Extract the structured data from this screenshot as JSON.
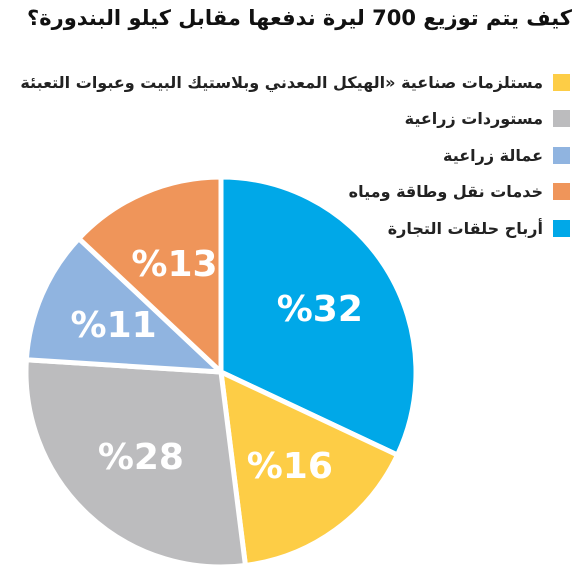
{
  "title": "كيف يتم توزيع 700 ليرة ندفعها مقابل كيلو البندورة؟",
  "chart_data": {
    "type": "pie",
    "title": "كيف يتم توزيع 700 ليرة ندفعها مقابل كيلو البندورة؟",
    "slices": [
      {
        "name": "أرباح حلقات التجارة",
        "value": 32,
        "label": "%32",
        "color": "#00a8e8"
      },
      {
        "name": "مستلزمات صناعية «الهيكل المعدني وبلاستيك البيت وعبوات التعبئة",
        "value": 16,
        "label": "%16",
        "color": "#fdcd46"
      },
      {
        "name": "مستوردات زراعية",
        "value": 28,
        "label": "%28",
        "color": "#bcbcbe"
      },
      {
        "name": "عمالة زراعية",
        "value": 11,
        "label": "%11",
        "color": "#90b4e0"
      },
      {
        "name": "خدمات نقل وطاقة ومياه",
        "value": 13,
        "label": "%13",
        "color": "#ef955a"
      }
    ]
  },
  "legend": [
    {
      "label": "مستلزمات صناعية «الهيكل المعدني وبلاستيك البيت وعبوات التعبئة",
      "color": "#fdcd46"
    },
    {
      "label": "مستوردات زراعية",
      "color": "#bcbcbe"
    },
    {
      "label": "عمالة زراعية",
      "color": "#90b4e0"
    },
    {
      "label": "خدمات نقل وطاقة ومياه",
      "color": "#ef955a"
    },
    {
      "label": "أرباح حلقات التجارة",
      "color": "#00a8e8"
    }
  ]
}
